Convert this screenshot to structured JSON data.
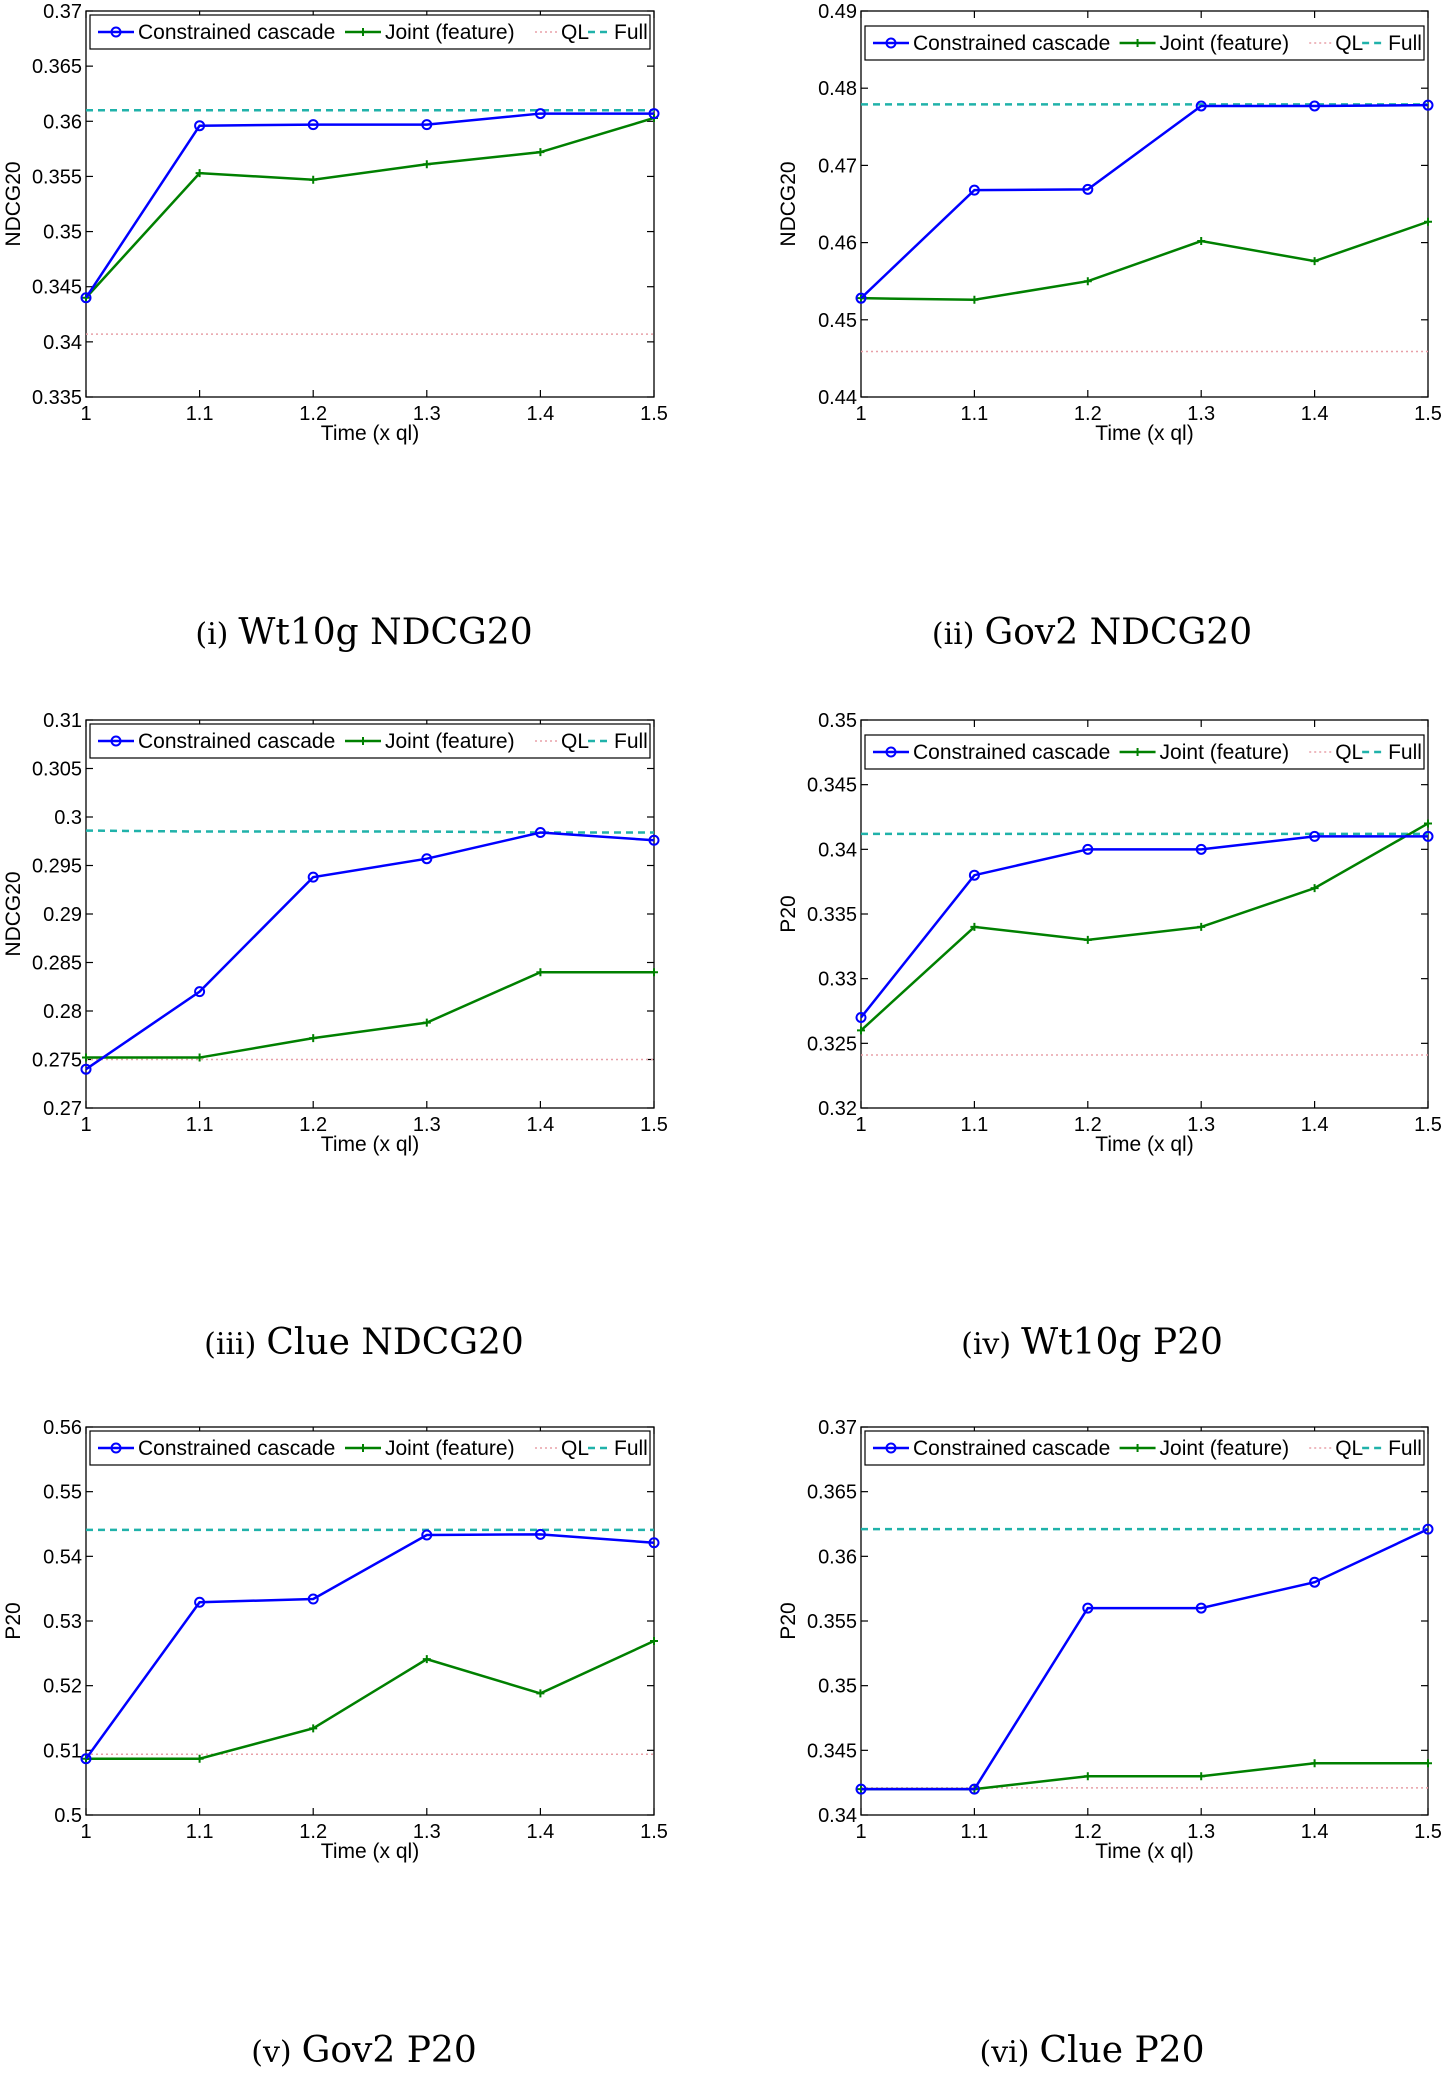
{
  "colors": {
    "cascade": "#0000ff",
    "joint": "#008000",
    "ql": "#e8a0a8",
    "full": "#20b2aa"
  },
  "legend": [
    "Constrained cascade",
    "Joint (feature)",
    "QL",
    "Full"
  ],
  "captions": [
    {
      "num": "(i)",
      "text": "Wt10g NDCG20"
    },
    {
      "num": "(ii)",
      "text": "Gov2 NDCG20"
    },
    {
      "num": "(iii)",
      "text": "Clue NDCG20"
    },
    {
      "num": "(iv)",
      "text": "Wt10g P20"
    },
    {
      "num": "(v)",
      "text": "Gov2 P20"
    },
    {
      "num": "(vi)",
      "text": "Clue P20"
    }
  ],
  "chart_data": [
    {
      "type": "line",
      "title": "Wt10g NDCG20",
      "xlabel": "Time (x ql)",
      "ylabel": "NDCG20",
      "x": [
        1,
        1.1,
        1.2,
        1.3,
        1.4,
        1.5
      ],
      "xticks": [
        "1",
        "1.1",
        "1.2",
        "1.3",
        "1.4",
        "1.5"
      ],
      "ylim": [
        0.335,
        0.37
      ],
      "yticks": [
        "0.335",
        "0.34",
        "0.345",
        "0.35",
        "0.355",
        "0.36",
        "0.365",
        "0.37"
      ],
      "series": [
        {
          "name": "Constrained cascade",
          "values": [
            0.344,
            0.3596,
            0.3597,
            0.3597,
            0.3607,
            0.3607
          ]
        },
        {
          "name": "Joint (feature)",
          "values": [
            0.344,
            0.3553,
            0.3547,
            0.3561,
            0.3572,
            0.3603
          ]
        },
        {
          "name": "QL",
          "values": [
            0.3407,
            0.3407,
            0.3407,
            0.3407,
            0.3407,
            0.3407
          ]
        },
        {
          "name": "Full",
          "values": [
            0.361,
            0.361,
            0.361,
            0.361,
            0.361,
            0.361
          ]
        }
      ],
      "legend": "top"
    },
    {
      "type": "line",
      "title": "Gov2 NDCG20",
      "xlabel": "Time (x ql)",
      "ylabel": "NDCG20",
      "x": [
        1,
        1.1,
        1.2,
        1.3,
        1.4,
        1.5
      ],
      "xticks": [
        "1",
        "1.1",
        "1.2",
        "1.3",
        "1.4",
        "1.5"
      ],
      "ylim": [
        0.44,
        0.49
      ],
      "yticks": [
        "0.44",
        "0.45",
        "0.46",
        "0.47",
        "0.48",
        "0.49"
      ],
      "series": [
        {
          "name": "Constrained cascade",
          "values": [
            0.4528,
            0.4668,
            0.4669,
            0.4777,
            0.4777,
            0.4778
          ]
        },
        {
          "name": "Joint (feature)",
          "values": [
            0.4528,
            0.4526,
            0.455,
            0.4602,
            0.4576,
            0.4627
          ]
        },
        {
          "name": "QL",
          "values": [
            0.4459,
            0.4459,
            0.4459,
            0.4459,
            0.4459,
            0.4459
          ]
        },
        {
          "name": "Full",
          "values": [
            0.4779,
            0.4779,
            0.4779,
            0.4779,
            0.4779,
            0.4779
          ]
        }
      ],
      "legend": "top"
    },
    {
      "type": "line",
      "title": "Clue NDCG20",
      "xlabel": "Time (x ql)",
      "ylabel": "NDCG20",
      "x": [
        1,
        1.1,
        1.2,
        1.3,
        1.4,
        1.5
      ],
      "xticks": [
        "1",
        "1.1",
        "1.2",
        "1.3",
        "1.4",
        "1.5"
      ],
      "ylim": [
        0.27,
        0.31
      ],
      "yticks": [
        "0.27",
        "0.275",
        "0.28",
        "0.285",
        "0.29",
        "0.295",
        "0.3",
        "0.305",
        "0.31"
      ],
      "series": [
        {
          "name": "Constrained cascade",
          "values": [
            0.274,
            0.282,
            0.2938,
            0.2957,
            0.2984,
            0.2976
          ]
        },
        {
          "name": "Joint (feature)",
          "values": [
            0.2752,
            0.2752,
            0.2772,
            0.2788,
            0.284,
            0.284
          ]
        },
        {
          "name": "QL",
          "values": [
            0.275,
            0.275,
            0.275,
            0.275,
            0.275,
            0.275
          ]
        },
        {
          "name": "Full",
          "values": [
            0.2986,
            0.2985,
            0.2985,
            0.2985,
            0.2984,
            0.2984
          ]
        }
      ],
      "legend": "top"
    },
    {
      "type": "line",
      "title": "Wt10g P20",
      "xlabel": "Time (x ql)",
      "ylabel": "P20",
      "x": [
        1,
        1.1,
        1.2,
        1.3,
        1.4,
        1.5
      ],
      "xticks": [
        "1",
        "1.1",
        "1.2",
        "1.3",
        "1.4",
        "1.5"
      ],
      "ylim": [
        0.32,
        0.35
      ],
      "yticks": [
        "0.32",
        "0.325",
        "0.33",
        "0.335",
        "0.34",
        "0.345",
        "0.35"
      ],
      "series": [
        {
          "name": "Constrained cascade",
          "values": [
            0.327,
            0.338,
            0.34,
            0.34,
            0.341,
            0.341
          ]
        },
        {
          "name": "Joint (feature)",
          "values": [
            0.326,
            0.334,
            0.333,
            0.334,
            0.337,
            0.342
          ]
        },
        {
          "name": "QL",
          "values": [
            0.3241,
            0.3241,
            0.3241,
            0.3241,
            0.3241,
            0.3241
          ]
        },
        {
          "name": "Full",
          "values": [
            0.3412,
            0.3412,
            0.3412,
            0.3412,
            0.3412,
            0.3412
          ]
        }
      ],
      "legend": "top"
    },
    {
      "type": "line",
      "title": "Gov2 P20",
      "xlabel": "Time (x ql)",
      "ylabel": "P20",
      "x": [
        1,
        1.1,
        1.2,
        1.3,
        1.4,
        1.5
      ],
      "xticks": [
        "1",
        "1.1",
        "1.2",
        "1.3",
        "1.4",
        "1.5"
      ],
      "ylim": [
        0.5,
        0.56
      ],
      "yticks": [
        "0.5",
        "0.51",
        "0.52",
        "0.53",
        "0.54",
        "0.55",
        "0.56"
      ],
      "series": [
        {
          "name": "Constrained cascade",
          "values": [
            0.5087,
            0.5329,
            0.5334,
            0.5433,
            0.5434,
            0.5421
          ]
        },
        {
          "name": "Joint (feature)",
          "values": [
            0.5087,
            0.5087,
            0.5134,
            0.5241,
            0.5188,
            0.5269
          ]
        },
        {
          "name": "QL",
          "values": [
            0.5094,
            0.5094,
            0.5094,
            0.5094,
            0.5094,
            0.5094
          ]
        },
        {
          "name": "Full",
          "values": [
            0.5441,
            0.5441,
            0.5441,
            0.5441,
            0.5441,
            0.5441
          ]
        }
      ],
      "legend": "top"
    },
    {
      "type": "line",
      "title": "Clue P20",
      "xlabel": "Time (x ql)",
      "ylabel": "P20",
      "x": [
        1,
        1.1,
        1.2,
        1.3,
        1.4,
        1.5
      ],
      "xticks": [
        "1",
        "1.1",
        "1.2",
        "1.3",
        "1.4",
        "1.5"
      ],
      "ylim": [
        0.34,
        0.37
      ],
      "yticks": [
        "0.34",
        "0.345",
        "0.35",
        "0.355",
        "0.36",
        "0.365",
        "0.37"
      ],
      "series": [
        {
          "name": "Constrained cascade",
          "values": [
            0.342,
            0.342,
            0.356,
            0.356,
            0.358,
            0.3621
          ]
        },
        {
          "name": "Joint (feature)",
          "values": [
            0.342,
            0.342,
            0.343,
            0.343,
            0.344,
            0.344
          ]
        },
        {
          "name": "QL",
          "values": [
            0.3421,
            0.3421,
            0.3421,
            0.3421,
            0.3421,
            0.3421
          ]
        },
        {
          "name": "Full",
          "values": [
            0.3621,
            0.3621,
            0.3621,
            0.3621,
            0.3621,
            0.3621
          ]
        }
      ],
      "legend": "top"
    }
  ]
}
